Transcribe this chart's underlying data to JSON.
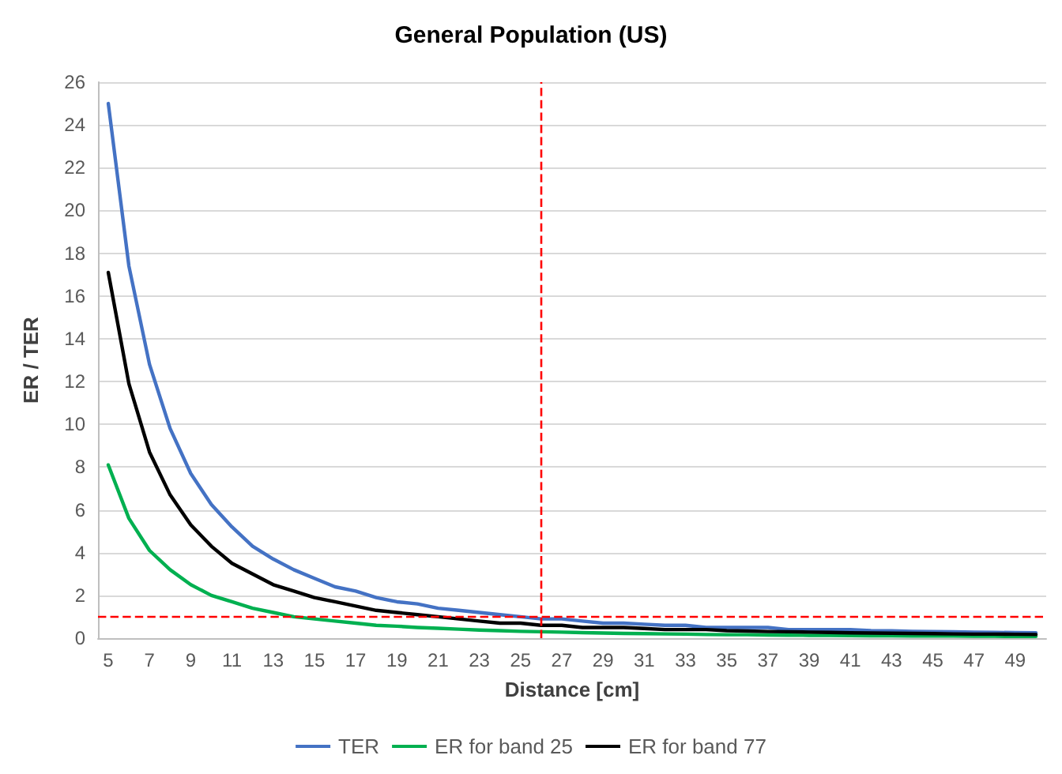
{
  "chart_data": {
    "type": "line",
    "title": "General Population (US)",
    "xlabel": "Distance [cm]",
    "ylabel": "ER / TER",
    "x": [
      5,
      6,
      7,
      8,
      9,
      10,
      11,
      12,
      13,
      14,
      15,
      16,
      17,
      18,
      19,
      20,
      21,
      22,
      23,
      24,
      25,
      26,
      27,
      28,
      29,
      30,
      31,
      32,
      33,
      34,
      35,
      36,
      37,
      38,
      39,
      40,
      41,
      42,
      43,
      44,
      45,
      46,
      47,
      48,
      49,
      50
    ],
    "xlim": [
      4.5,
      50.5
    ],
    "xticks": [
      5,
      7,
      9,
      11,
      13,
      15,
      17,
      19,
      21,
      23,
      25,
      27,
      29,
      31,
      33,
      35,
      37,
      39,
      41,
      43,
      45,
      47,
      49
    ],
    "ylim": [
      0,
      26
    ],
    "yticks": [
      0,
      2,
      4,
      6,
      8,
      10,
      12,
      14,
      16,
      18,
      20,
      22,
      24,
      26
    ],
    "series": [
      {
        "name": "TER",
        "color": "#4472c4",
        "values": [
          25.0,
          17.4,
          12.8,
          9.8,
          7.7,
          6.25,
          5.2,
          4.3,
          3.7,
          3.2,
          2.8,
          2.4,
          2.2,
          1.9,
          1.7,
          1.6,
          1.4,
          1.3,
          1.2,
          1.1,
          1.0,
          0.9,
          0.9,
          0.8,
          0.7,
          0.7,
          0.65,
          0.6,
          0.6,
          0.5,
          0.5,
          0.5,
          0.5,
          0.4,
          0.4,
          0.4,
          0.4,
          0.35,
          0.34,
          0.32,
          0.31,
          0.3,
          0.28,
          0.27,
          0.26,
          0.25
        ]
      },
      {
        "name": "ER for band 25",
        "color": "#00b050",
        "values": [
          8.1,
          5.6,
          4.1,
          3.2,
          2.5,
          2.0,
          1.7,
          1.4,
          1.2,
          1.0,
          0.9,
          0.8,
          0.7,
          0.6,
          0.56,
          0.5,
          0.46,
          0.42,
          0.38,
          0.35,
          0.32,
          0.3,
          0.28,
          0.26,
          0.24,
          0.22,
          0.21,
          0.2,
          0.19,
          0.17,
          0.16,
          0.16,
          0.15,
          0.14,
          0.13,
          0.13,
          0.12,
          0.11,
          0.11,
          0.1,
          0.1,
          0.1,
          0.09,
          0.09,
          0.08,
          0.08
        ]
      },
      {
        "name": "ER for band 77",
        "color": "#000000",
        "values": [
          17.1,
          11.9,
          8.7,
          6.7,
          5.3,
          4.3,
          3.5,
          3.0,
          2.5,
          2.2,
          1.9,
          1.7,
          1.5,
          1.3,
          1.2,
          1.1,
          1.0,
          0.9,
          0.8,
          0.7,
          0.7,
          0.6,
          0.6,
          0.5,
          0.5,
          0.5,
          0.45,
          0.4,
          0.4,
          0.4,
          0.35,
          0.33,
          0.31,
          0.3,
          0.28,
          0.27,
          0.25,
          0.24,
          0.23,
          0.22,
          0.21,
          0.2,
          0.19,
          0.19,
          0.18,
          0.17
        ]
      }
    ],
    "ref_lines": [
      {
        "axis": "y",
        "value": 1,
        "color": "#ff0000",
        "line_style": "dashed"
      },
      {
        "axis": "x",
        "value": 26,
        "color": "#ff0000",
        "line_style": "dashed"
      }
    ],
    "grid": "y",
    "legend": "bottom",
    "marker": "none",
    "line_style": "solid"
  }
}
